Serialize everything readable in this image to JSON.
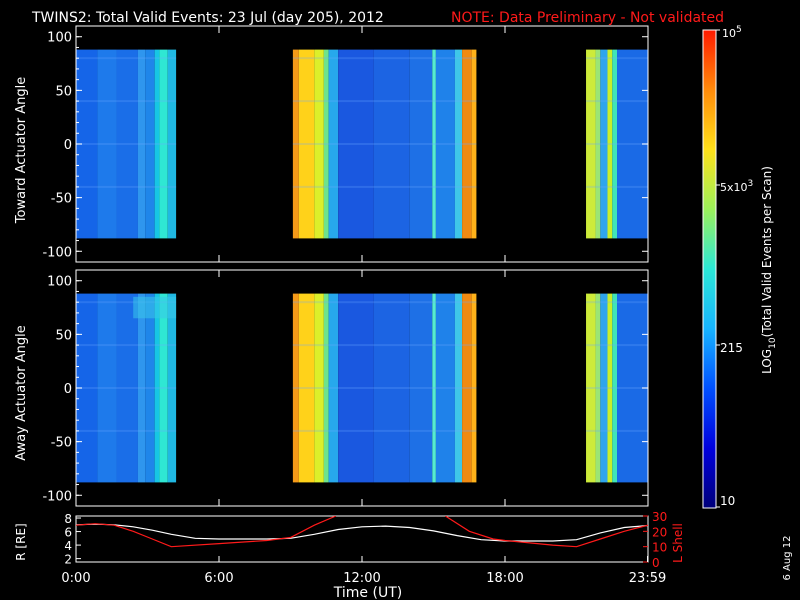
{
  "header": {
    "title": "TWINS2: Total Valid Events: 23 Jul (day 205), 2012",
    "note": "NOTE: Data Preliminary - Not validated"
  },
  "footer": {
    "date_stamp": "6 Aug 12"
  },
  "chart_data": [
    {
      "type": "heatmap",
      "name": "toward-panel",
      "ylabel": "Toward Actuator Angle",
      "ylim": [
        -110,
        110
      ],
      "ydata_range": [
        -88,
        88
      ],
      "yticks": [
        100,
        50,
        0,
        -50,
        -100
      ],
      "xlim": [
        0,
        24
      ],
      "data_segments": [
        {
          "start": 0.0,
          "end": 4.2
        },
        {
          "start": 9.1,
          "end": 16.8
        },
        {
          "start": 21.4,
          "end": 24.0
        }
      ],
      "columns": [
        {
          "t0": 0.0,
          "t1": 0.9,
          "color": "#1565e8"
        },
        {
          "t0": 0.9,
          "t1": 1.7,
          "color": "#1e7aeb"
        },
        {
          "t0": 1.7,
          "t1": 2.6,
          "color": "#1a6ee8"
        },
        {
          "t0": 2.6,
          "t1": 2.9,
          "color": "#2f96ee"
        },
        {
          "t0": 2.9,
          "t1": 3.3,
          "color": "#1f86ea"
        },
        {
          "t0": 3.3,
          "t1": 3.5,
          "color": "#17c6e4"
        },
        {
          "t0": 3.5,
          "t1": 3.85,
          "color": "#2fe7d3"
        },
        {
          "t0": 3.85,
          "t1": 4.2,
          "color": "#20b8e2"
        },
        {
          "t0": 9.1,
          "t1": 9.35,
          "color": "#f59a18"
        },
        {
          "t0": 9.35,
          "t1": 10.0,
          "color": "#ffd21a"
        },
        {
          "t0": 10.0,
          "t1": 10.4,
          "color": "#dcef2a"
        },
        {
          "t0": 10.4,
          "t1": 10.6,
          "color": "#6fe38b"
        },
        {
          "t0": 10.6,
          "t1": 11.0,
          "color": "#27a8ec"
        },
        {
          "t0": 11.0,
          "t1": 12.5,
          "color": "#1a58e0"
        },
        {
          "t0": 12.5,
          "t1": 14.0,
          "color": "#1c64e3"
        },
        {
          "t0": 14.0,
          "t1": 14.95,
          "color": "#1e70e6"
        },
        {
          "t0": 14.95,
          "t1": 15.1,
          "color": "#56ecd0"
        },
        {
          "t0": 15.1,
          "t1": 15.9,
          "color": "#1f82ea"
        },
        {
          "t0": 15.9,
          "t1": 16.2,
          "color": "#3fc6e8"
        },
        {
          "t0": 16.2,
          "t1": 16.6,
          "color": "#f08a12"
        },
        {
          "t0": 16.6,
          "t1": 16.8,
          "color": "#ffb21a"
        },
        {
          "t0": 21.4,
          "t1": 21.8,
          "color": "#cdeb3a"
        },
        {
          "t0": 21.8,
          "t1": 22.0,
          "color": "#9be574"
        },
        {
          "t0": 22.0,
          "t1": 22.3,
          "color": "#2fa5ec"
        },
        {
          "t0": 22.3,
          "t1": 22.5,
          "color": "#c9ef2a"
        },
        {
          "t0": 22.5,
          "t1": 22.7,
          "color": "#3fe5b8"
        },
        {
          "t0": 22.7,
          "t1": 24.0,
          "color": "#1a6ae6"
        }
      ]
    },
    {
      "type": "heatmap",
      "name": "away-panel",
      "ylabel": "Away Actuator Angle",
      "ylim": [
        -110,
        110
      ],
      "ydata_range": [
        -88,
        88
      ],
      "yticks": [
        100,
        50,
        0,
        -50,
        -100
      ],
      "xlim": [
        0,
        24
      ],
      "data_segments": [
        {
          "start": 0.0,
          "end": 4.2
        },
        {
          "start": 9.1,
          "end": 16.8
        },
        {
          "start": 21.4,
          "end": 24.0
        }
      ],
      "columns": [
        {
          "t0": 0.0,
          "t1": 0.9,
          "color": "#1565e8"
        },
        {
          "t0": 0.9,
          "t1": 1.7,
          "color": "#1e7aeb"
        },
        {
          "t0": 1.7,
          "t1": 2.6,
          "color": "#1a6ee8"
        },
        {
          "t0": 2.6,
          "t1": 2.9,
          "color": "#2f96ee"
        },
        {
          "t0": 2.9,
          "t1": 3.3,
          "color": "#1f86ea"
        },
        {
          "t0": 3.3,
          "t1": 3.5,
          "color": "#17c6e4"
        },
        {
          "t0": 3.5,
          "t1": 3.85,
          "color": "#2fe7d3"
        },
        {
          "t0": 3.85,
          "t1": 4.2,
          "color": "#20b8e2"
        },
        {
          "t0": 9.1,
          "t1": 9.35,
          "color": "#f59a18"
        },
        {
          "t0": 9.35,
          "t1": 10.0,
          "color": "#ffd21a"
        },
        {
          "t0": 10.0,
          "t1": 10.4,
          "color": "#dcef2a"
        },
        {
          "t0": 10.4,
          "t1": 10.6,
          "color": "#6fe38b"
        },
        {
          "t0": 10.6,
          "t1": 11.0,
          "color": "#27a8ec"
        },
        {
          "t0": 11.0,
          "t1": 12.5,
          "color": "#1a58e0"
        },
        {
          "t0": 12.5,
          "t1": 14.0,
          "color": "#1c64e3"
        },
        {
          "t0": 14.0,
          "t1": 14.95,
          "color": "#1e70e6"
        },
        {
          "t0": 14.95,
          "t1": 15.1,
          "color": "#56ecd0"
        },
        {
          "t0": 15.1,
          "t1": 15.9,
          "color": "#1f82ea"
        },
        {
          "t0": 15.9,
          "t1": 16.2,
          "color": "#3fc6e8"
        },
        {
          "t0": 16.2,
          "t1": 16.6,
          "color": "#f08a12"
        },
        {
          "t0": 16.6,
          "t1": 16.8,
          "color": "#ffb21a"
        },
        {
          "t0": 21.4,
          "t1": 21.8,
          "color": "#cdeb3a"
        },
        {
          "t0": 21.8,
          "t1": 22.0,
          "color": "#9be574"
        },
        {
          "t0": 22.0,
          "t1": 22.3,
          "color": "#2fa5ec"
        },
        {
          "t0": 22.3,
          "t1": 22.5,
          "color": "#c9ef2a"
        },
        {
          "t0": 22.5,
          "t1": 22.7,
          "color": "#3fe5b8"
        },
        {
          "t0": 22.7,
          "t1": 24.0,
          "color": "#1a6ae6"
        }
      ]
    },
    {
      "type": "line",
      "name": "orbit-panel",
      "xlabel": "Time (UT)",
      "xticks": [
        "0:00",
        "6:00",
        "12:00",
        "18:00",
        "23:59"
      ],
      "xtick_values": [
        0,
        6,
        12,
        18,
        23.98
      ],
      "xlim": [
        0,
        24
      ],
      "ylabel_left": "R [RE]",
      "ylim_left": [
        1.5,
        8.3
      ],
      "yticks_left": [
        8,
        6,
        4,
        2
      ],
      "ylabel_right": "L Shell",
      "ylim_right": [
        0,
        30
      ],
      "yticks_right": [
        30,
        20,
        10,
        0
      ],
      "series": [
        {
          "name": "R",
          "color": "#ffffff",
          "x": [
            0,
            0.8,
            1.6,
            2.4,
            3.2,
            4.0,
            5.0,
            6.0,
            7.0,
            8.0,
            9.0,
            10.0,
            11.0,
            12.0,
            13.0,
            14.0,
            15.0,
            16.0,
            17.0,
            18.0,
            19.0,
            20.0,
            21.0,
            22.0,
            23.0,
            24.0
          ],
          "values": [
            7.0,
            7.1,
            7.0,
            6.7,
            6.2,
            5.6,
            5.0,
            4.9,
            4.9,
            4.9,
            5.0,
            5.6,
            6.3,
            6.7,
            6.8,
            6.6,
            6.1,
            5.4,
            4.8,
            4.6,
            4.6,
            4.6,
            4.8,
            5.8,
            6.6,
            6.9
          ]
        },
        {
          "name": "L Shell",
          "color": "#ff1a1a",
          "x": [
            0,
            0.8,
            1.6,
            2.4,
            3.2,
            4.0,
            6.0,
            8.0,
            9.0,
            10.0,
            10.9,
            null,
            15.5,
            16.5,
            17.5,
            18.0,
            20.0,
            21.0,
            22.0,
            23.0,
            24.0
          ],
          "values": [
            24,
            25,
            24,
            20,
            15,
            10,
            12,
            14,
            16,
            24,
            30,
            null,
            30,
            20,
            15,
            14,
            11,
            10,
            15,
            20,
            24
          ]
        }
      ]
    }
  ],
  "colorbar": {
    "label": "LOG10(Total Valid Events per Scan)",
    "label_main": "LOG",
    "label_sub": "10",
    "label_rest": "(Total Valid Events per Scan)",
    "tick_top_base": "10",
    "tick_top_exp": "5",
    "tick_upper_base": "5x10",
    "tick_upper_exp": "3",
    "tick_mid": "215",
    "tick_bottom": "10",
    "stops": [
      "#00007a",
      "#0000dd",
      "#0050ff",
      "#17b4ff",
      "#2be8d6",
      "#9bf05a",
      "#ffe01a",
      "#ff8a0a",
      "#ff1a00"
    ]
  },
  "colors": {
    "note": "#ff1a1a",
    "axis": "#ffffff",
    "background": "#000000"
  }
}
